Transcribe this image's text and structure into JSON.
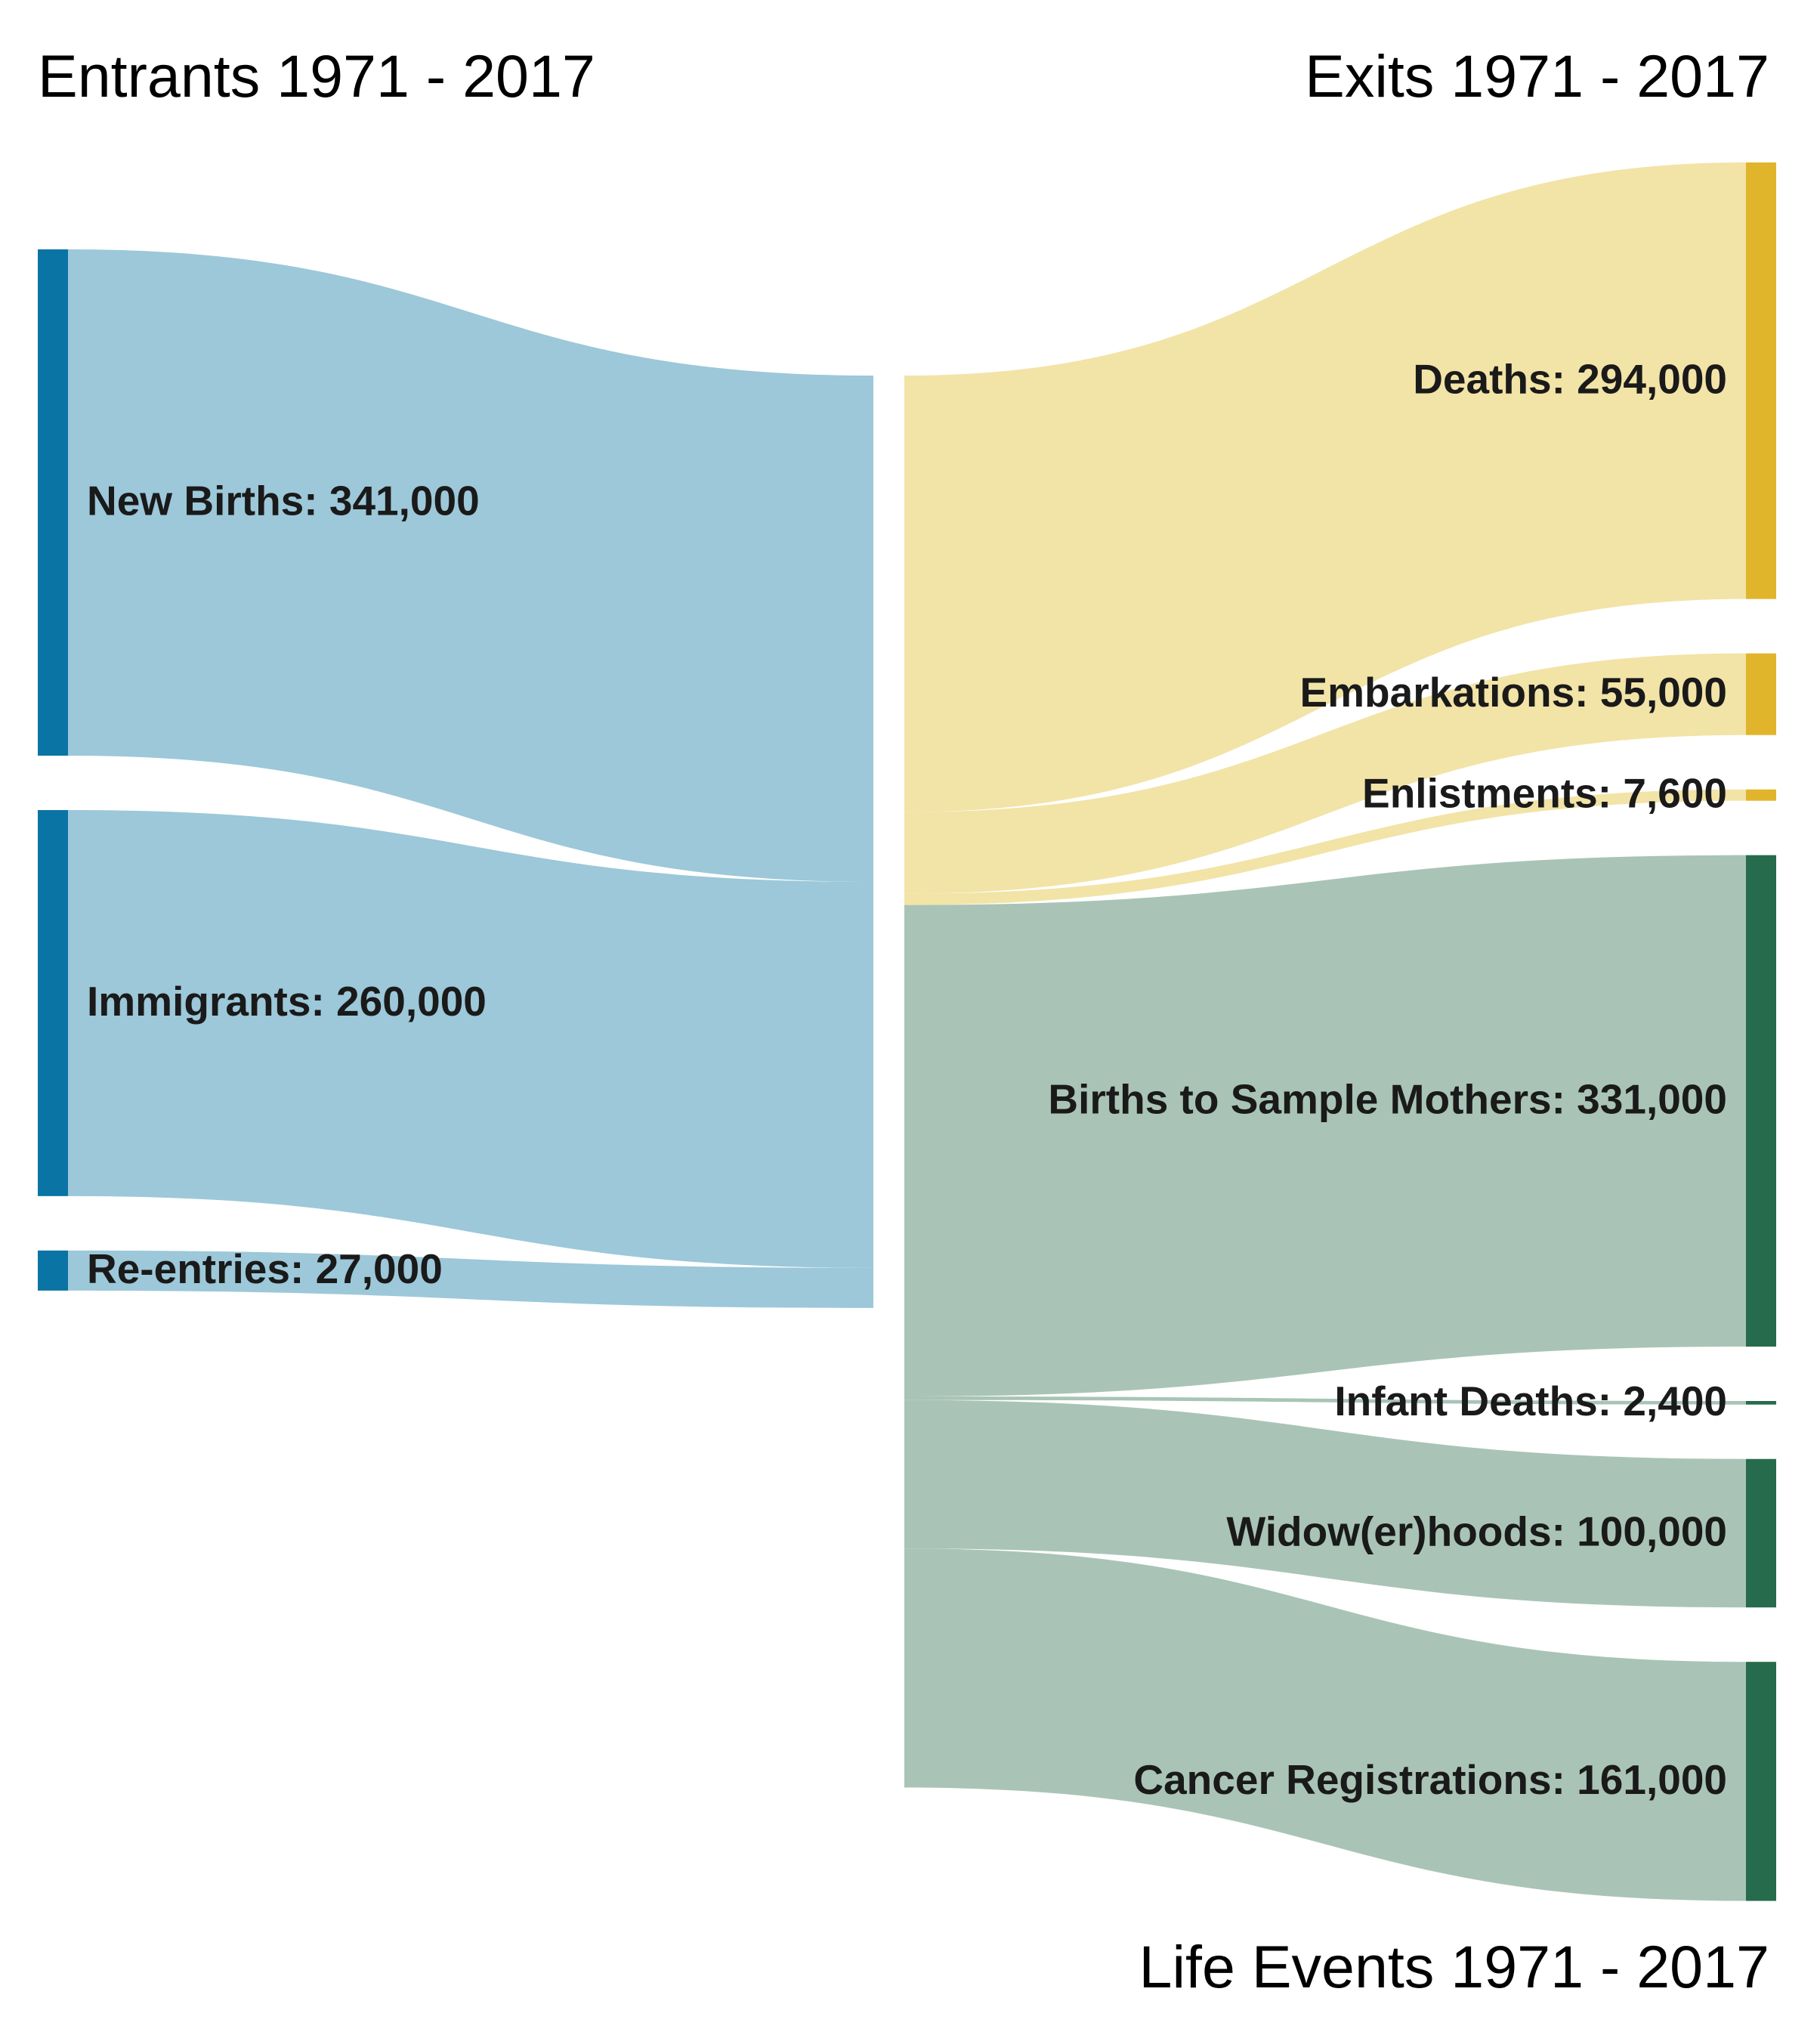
{
  "headings": {
    "entrants": "Entrants 1971 - 2017",
    "exits": "Exits 1971 - 2017",
    "life_events": "Life Events 1971 - 2017"
  },
  "colors": {
    "entrant_node": "#0a74a4",
    "entrant_flow": "#9cc8d9",
    "exit_node": "#e1b52b",
    "exit_flow": "#f2e3a7",
    "life_node": "#266b4c",
    "life_flow": "#a9c4b6"
  },
  "entrants": [
    {
      "id": "new-births",
      "label": "New Births: 341,000",
      "value": 341000
    },
    {
      "id": "immigrants",
      "label": "Immigrants: 260,000",
      "value": 260000
    },
    {
      "id": "re-entries",
      "label": "Re-entries: 27,000",
      "value": 27000
    }
  ],
  "exits": [
    {
      "id": "deaths",
      "label": "Deaths: 294,000",
      "value": 294000
    },
    {
      "id": "embarkations",
      "label": "Embarkations: 55,000",
      "value": 55000
    },
    {
      "id": "enlistments",
      "label": "Enlistments: 7,600",
      "value": 7600
    }
  ],
  "life_events": [
    {
      "id": "births-to-sample-mothers",
      "label": "Births to Sample Mothers: 331,000",
      "value": 331000
    },
    {
      "id": "infant-deaths",
      "label": "Infant Deaths: 2,400",
      "value": 2400
    },
    {
      "id": "widowerhoods",
      "label": "Widow(er)hoods: 100,000",
      "value": 100000
    },
    {
      "id": "cancer-registrations",
      "label": "Cancer Registrations: 161,000",
      "value": 161000
    }
  ]
}
